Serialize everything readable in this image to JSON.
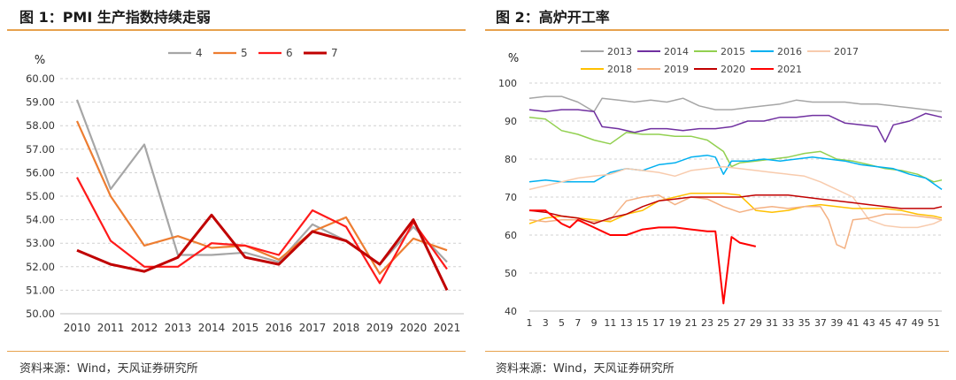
{
  "charts": [
    {
      "title": "图 1：PMI 生产指数持续走弱",
      "source": "资料来源：Wind，天风证券研究所"
    },
    {
      "title": "图 2：高炉开工率",
      "source": "资料来源：Wind，天风证券研究所"
    }
  ],
  "chart_data": [
    {
      "type": "line",
      "unit_label": "%",
      "x": [
        "2010",
        "2011",
        "2012",
        "2013",
        "2014",
        "2015",
        "2016",
        "2017",
        "2018",
        "2019",
        "2020",
        "2021"
      ],
      "ylim": [
        50,
        60
      ],
      "yticks": [
        "50.00",
        "51.00",
        "52.00",
        "53.00",
        "54.00",
        "55.00",
        "56.00",
        "57.00",
        "58.00",
        "59.00",
        "60.00"
      ],
      "grid": true,
      "legend_position": "top",
      "series": [
        {
          "name": "4",
          "color": "#a6a6a6",
          "values": [
            59.1,
            55.3,
            57.2,
            52.5,
            52.5,
            52.6,
            52.2,
            53.8,
            53.1,
            52.1,
            53.7,
            52.2
          ]
        },
        {
          "name": "5",
          "color": "#ed7d31",
          "values": [
            58.2,
            55.0,
            52.9,
            53.3,
            52.8,
            52.9,
            52.3,
            53.5,
            54.1,
            51.7,
            53.2,
            52.7
          ]
        },
        {
          "name": "6",
          "color": "#ff1a1a",
          "values": [
            55.8,
            53.1,
            52.0,
            52.0,
            53.0,
            52.9,
            52.5,
            54.4,
            53.7,
            51.3,
            53.9,
            51.9
          ]
        },
        {
          "name": "7",
          "color": "#c00000",
          "values": [
            52.7,
            52.1,
            51.8,
            52.4,
            54.2,
            52.4,
            52.1,
            53.5,
            53.1,
            52.1,
            54.0,
            51.0
          ]
        }
      ]
    },
    {
      "type": "line",
      "unit_label": "%",
      "x_ticks": [
        "1",
        "3",
        "5",
        "7",
        "9",
        "11",
        "13",
        "15",
        "17",
        "19",
        "21",
        "23",
        "25",
        "27",
        "29",
        "31",
        "33",
        "35",
        "37",
        "39",
        "41",
        "43",
        "45",
        "47",
        "49",
        "51"
      ],
      "xlim": [
        1,
        52
      ],
      "ylim": [
        40,
        100
      ],
      "yticks": [
        "40",
        "50",
        "60",
        "70",
        "80",
        "90",
        "100"
      ],
      "grid": true,
      "legend_position": "top",
      "series": [
        {
          "name": "2013",
          "color": "#a6a6a6",
          "x": [
            1,
            3,
            5,
            7,
            9,
            10,
            12,
            14,
            16,
            18,
            20,
            22,
            24,
            26,
            28,
            30,
            32,
            34,
            36,
            38,
            40,
            42,
            44,
            46,
            48,
            50,
            52
          ],
          "values": [
            96,
            96.5,
            96.5,
            95,
            92.5,
            96,
            95.5,
            95,
            95.5,
            95,
            96,
            94,
            93,
            93,
            93.5,
            94,
            94.5,
            95.5,
            95,
            95,
            95,
            94.5,
            94.5,
            94,
            93.5,
            93,
            92.5
          ]
        },
        {
          "name": "2014",
          "color": "#7030a0",
          "x": [
            1,
            3,
            5,
            7,
            9,
            10,
            12,
            14,
            16,
            18,
            20,
            22,
            24,
            26,
            28,
            30,
            32,
            34,
            36,
            38,
            40,
            42,
            44,
            45,
            46,
            48,
            50,
            52
          ],
          "values": [
            93,
            92.5,
            93,
            93,
            92.5,
            88.5,
            88,
            87,
            88,
            88,
            87.5,
            88,
            88,
            88.5,
            90,
            90,
            91,
            91,
            91.5,
            91.5,
            89.5,
            89,
            88.5,
            84.5,
            89,
            90,
            92,
            91
          ]
        },
        {
          "name": "2015",
          "color": "#92d050",
          "x": [
            1,
            3,
            5,
            7,
            9,
            11,
            13,
            15,
            17,
            19,
            21,
            23,
            25,
            26,
            27,
            29,
            31,
            33,
            35,
            37,
            39,
            41,
            43,
            45,
            47,
            49,
            51,
            52
          ],
          "values": [
            91,
            90.5,
            87.5,
            86.5,
            85,
            84,
            87,
            86.5,
            86.5,
            86,
            86,
            85,
            82,
            78,
            79,
            79.5,
            80,
            80.5,
            81.5,
            82,
            80,
            79.5,
            78.5,
            77.5,
            77,
            76,
            74,
            74.5
          ]
        },
        {
          "name": "2016",
          "color": "#00b0f0",
          "x": [
            1,
            3,
            5,
            7,
            9,
            11,
            13,
            15,
            17,
            19,
            21,
            23,
            24,
            25,
            26,
            28,
            30,
            32,
            34,
            36,
            38,
            40,
            42,
            44,
            46,
            48,
            50,
            52
          ],
          "values": [
            74,
            74.5,
            74,
            74,
            74,
            76.5,
            77.5,
            77,
            78.5,
            79,
            80.5,
            81,
            80.5,
            76,
            79.5,
            79.5,
            80,
            79.5,
            80,
            80.5,
            80,
            79.5,
            78.5,
            78,
            77.5,
            76,
            75,
            72
          ]
        },
        {
          "name": "2017",
          "color": "#f8cbad",
          "x": [
            1,
            3,
            5,
            7,
            9,
            11,
            13,
            15,
            17,
            19,
            21,
            23,
            25,
            27,
            29,
            31,
            33,
            35,
            37,
            39,
            41,
            43,
            45,
            47,
            49,
            51,
            52
          ],
          "values": [
            72,
            73,
            74,
            75,
            75.5,
            76,
            77.5,
            77,
            76.5,
            75.5,
            77,
            77.5,
            78,
            77.5,
            77,
            76.5,
            76,
            75.5,
            74,
            72,
            70,
            64,
            62.5,
            62,
            62,
            63,
            64
          ]
        },
        {
          "name": "2018",
          "color": "#ffc000",
          "x": [
            1,
            3,
            5,
            7,
            9,
            11,
            13,
            15,
            17,
            19,
            21,
            23,
            25,
            27,
            29,
            31,
            33,
            35,
            37,
            39,
            41,
            43,
            45,
            47,
            49,
            51,
            52
          ],
          "values": [
            63,
            64.5,
            65,
            64.5,
            64,
            63.5,
            65.5,
            66.5,
            69,
            70,
            71,
            71,
            71,
            70.5,
            66.5,
            66,
            66.5,
            67.5,
            68,
            67.5,
            67,
            67,
            67,
            66.5,
            65.5,
            65,
            64.5
          ]
        },
        {
          "name": "2019",
          "color": "#f4b183",
          "x": [
            1,
            3,
            5,
            7,
            9,
            11,
            13,
            15,
            17,
            19,
            21,
            23,
            25,
            27,
            29,
            31,
            33,
            35,
            37,
            38,
            39,
            40,
            41,
            43,
            45,
            47,
            49,
            51,
            52
          ],
          "values": [
            64,
            63.5,
            64,
            64,
            63.5,
            64,
            69,
            70,
            70.5,
            68,
            70,
            69.5,
            67.5,
            66,
            67,
            67.5,
            67,
            67.5,
            67.5,
            64,
            57.5,
            56.5,
            64,
            64.5,
            65.5,
            65.5,
            65,
            64.5,
            64
          ]
        },
        {
          "name": "2020",
          "color": "#c00000",
          "x": [
            1,
            3,
            5,
            7,
            9,
            11,
            13,
            15,
            17,
            19,
            21,
            23,
            25,
            27,
            29,
            31,
            33,
            35,
            37,
            39,
            41,
            43,
            45,
            47,
            49,
            51,
            52
          ],
          "values": [
            66.5,
            66,
            65,
            64.5,
            63,
            64.5,
            65.5,
            67.5,
            69,
            69.5,
            70,
            70,
            70,
            70,
            70.5,
            70.5,
            70.5,
            70,
            69.5,
            69,
            68.5,
            68,
            67.5,
            67,
            67,
            67,
            67.5
          ]
        },
        {
          "name": "2021",
          "color": "#ff0000",
          "x": [
            1,
            3,
            5,
            6,
            7,
            9,
            10,
            11,
            12,
            13,
            15,
            17,
            19,
            21,
            23,
            24,
            25,
            26,
            27,
            29
          ],
          "values": [
            66.5,
            66.5,
            63,
            62,
            64,
            62,
            61,
            60,
            60,
            60,
            61.5,
            62,
            62,
            61.5,
            61,
            61,
            42,
            59.5,
            58,
            57
          ]
        }
      ]
    }
  ]
}
